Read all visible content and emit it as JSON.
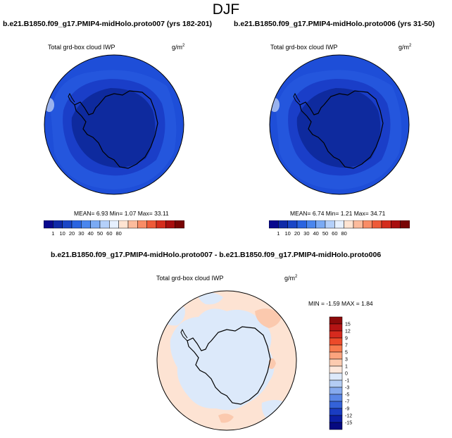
{
  "season": "DJF",
  "panels": [
    {
      "title": "b.e21.B1850.f09_g17.PMIP4-midHolo.proto007 (yrs 182-201)",
      "variable": "Total grd-box cloud IWP",
      "units_base": "g/m",
      "units_sup": "2",
      "stats": "MEAN=   6.93  Min=   1.07  Max=  33.11"
    },
    {
      "title": "b.e21.B1850.f09_g17.PMIP4-midHolo.proto006 (yrs 31-50)",
      "variable": "Total grd-box cloud IWP",
      "units_base": "g/m",
      "units_sup": "2",
      "stats": "MEAN=   6.74  Min=   1.21  Max=  34.71"
    }
  ],
  "colorbar": {
    "labels": [
      "1",
      "10",
      "20",
      "30",
      "40",
      "50",
      "60",
      "80"
    ],
    "colors": [
      "#08088e",
      "#0f2aa8",
      "#1a46c6",
      "#2a64e0",
      "#4a86ee",
      "#7aaaf4",
      "#b4d0fa",
      "#e6f0ff",
      "#ffe4d2",
      "#fcbb9c",
      "#f98c66",
      "#ee5a38",
      "#d42c1c",
      "#a80e0e",
      "#780404"
    ]
  },
  "diff": {
    "title": "b.e21.B1850.f09_g17.PMIP4-midHolo.proto007 - b.e21.B1850.f09_g17.PMIP4-midHolo.proto006",
    "variable": "Total grd-box cloud IWP",
    "units_base": "g/m",
    "units_sup": "2",
    "stats": "MIN =  -1.59 MAX =   1.84",
    "colorbar": {
      "labels": [
        "15",
        "12",
        "9",
        "7",
        "5",
        "3",
        "1",
        "0",
        "-1",
        "-3",
        "-5",
        "-7",
        "-9",
        "-12",
        "-15"
      ],
      "colors": [
        "#8c0a0a",
        "#b51414",
        "#d62a1e",
        "#ec4a2a",
        "#f87a4e",
        "#fca47e",
        "#fccbb0",
        "#fde8dc",
        "#dde9fa",
        "#b4cdf4",
        "#86aaee",
        "#5a86e6",
        "#3462d8",
        "#1a3cc2",
        "#0c1ea4",
        "#060a80"
      ]
    }
  },
  "style": {
    "map_base": "#1e4ed8",
    "map_ring": "#2a5ce2",
    "map_inner": "#1a3ec8",
    "map_core": "#0e2a9e",
    "diff_base": "#fde3d3",
    "diff_blue": "#dce9fa"
  }
}
